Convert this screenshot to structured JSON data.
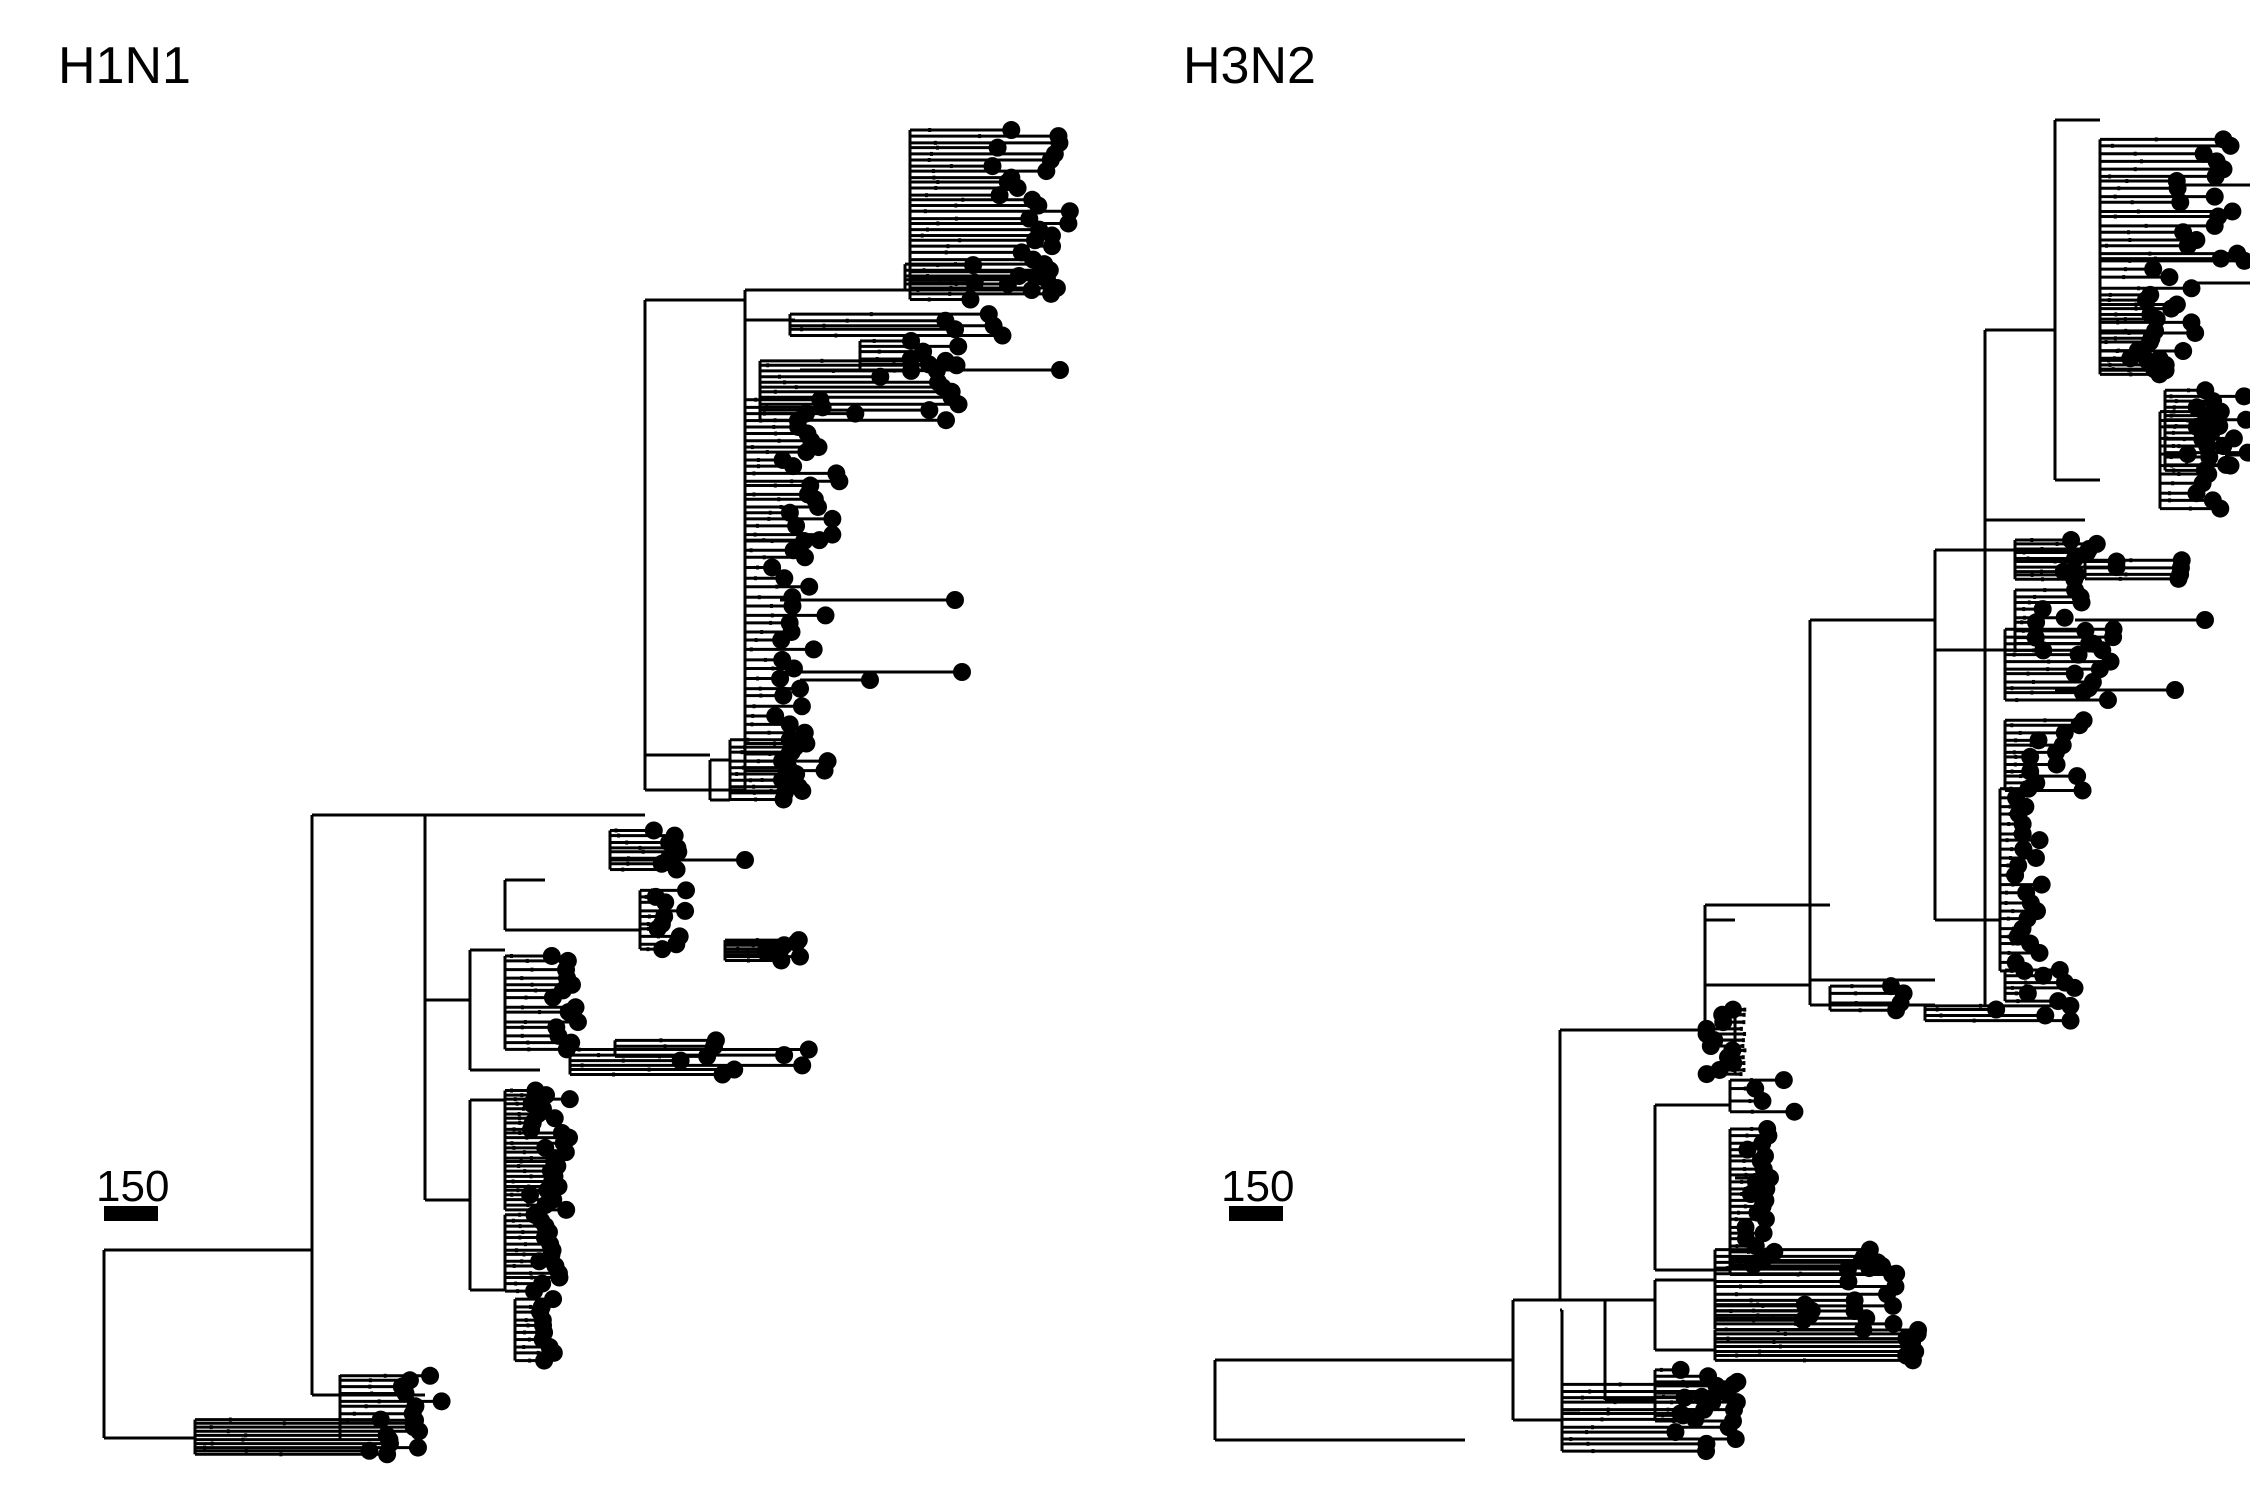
{
  "panels": [
    {
      "id": "h1n1",
      "title": "H1N1",
      "scale_label": "150"
    },
    {
      "id": "h3n2",
      "title": "H3N2",
      "scale_label": "150"
    }
  ],
  "colors": {
    "branch": "#000000",
    "tip": "#000000",
    "background": "#ffffff"
  }
}
